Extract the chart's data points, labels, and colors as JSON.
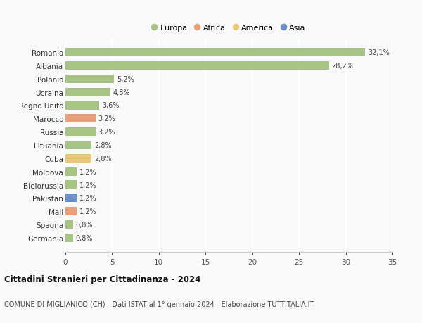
{
  "countries": [
    "Romania",
    "Albania",
    "Polonia",
    "Ucraina",
    "Regno Unito",
    "Marocco",
    "Russia",
    "Lituania",
    "Cuba",
    "Moldova",
    "Bielorussia",
    "Pakistan",
    "Mali",
    "Spagna",
    "Germania"
  ],
  "values": [
    32.1,
    28.2,
    5.2,
    4.8,
    3.6,
    3.2,
    3.2,
    2.8,
    2.8,
    1.2,
    1.2,
    1.2,
    1.2,
    0.8,
    0.8
  ],
  "labels": [
    "32,1%",
    "28,2%",
    "5,2%",
    "4,8%",
    "3,6%",
    "3,2%",
    "3,2%",
    "2,8%",
    "2,8%",
    "1,2%",
    "1,2%",
    "1,2%",
    "1,2%",
    "0,8%",
    "0,8%"
  ],
  "colors": [
    "#a8c484",
    "#a8c484",
    "#a8c484",
    "#a8c484",
    "#a8c484",
    "#e8a07a",
    "#a8c484",
    "#a8c484",
    "#e8c878",
    "#a8c484",
    "#a8c484",
    "#6b90c8",
    "#e8a07a",
    "#a8c484",
    "#a8c484"
  ],
  "legend_labels": [
    "Europa",
    "Africa",
    "America",
    "Asia"
  ],
  "legend_colors": [
    "#a8c484",
    "#e8a07a",
    "#e8c878",
    "#6b90c8"
  ],
  "title": "Cittadini Stranieri per Cittadinanza - 2024",
  "subtitle": "COMUNE DI MIGLIANICO (CH) - Dati ISTAT al 1° gennaio 2024 - Elaborazione TUTTITALIA.IT",
  "xlim": [
    0,
    35
  ],
  "xticks": [
    0,
    5,
    10,
    15,
    20,
    25,
    30,
    35
  ],
  "background_color": "#f9f9f9",
  "grid_color": "#ffffff",
  "bar_height": 0.65
}
